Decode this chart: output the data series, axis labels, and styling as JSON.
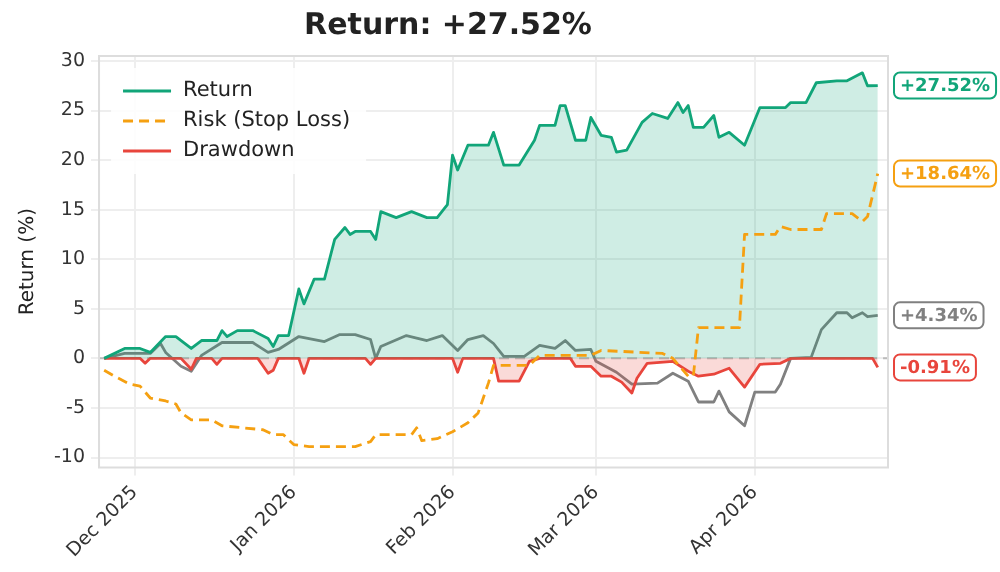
{
  "chart_data": {
    "type": "line",
    "title": "Return: +27.52%",
    "ylabel": "Return (%)",
    "xlim": [
      "2025-11-24",
      "2026-04-27"
    ],
    "xticks": [
      {
        "value": "2025-12-01",
        "label": "Dec 2025"
      },
      {
        "value": "2026-01-01",
        "label": "Jan 2026"
      },
      {
        "value": "2026-02-01",
        "label": "Feb 2026"
      },
      {
        "value": "2026-03-01",
        "label": "Mar 2026"
      },
      {
        "value": "2026-04-01",
        "label": "Apr 2026"
      }
    ],
    "ylim": [
      -11,
      30.5
    ],
    "yticks": [
      -10,
      -5,
      0,
      5,
      10,
      15,
      20,
      25,
      30
    ],
    "grid": true,
    "legend": "top left",
    "marker": "none",
    "ref_lines": [
      {
        "axis": "y",
        "value": 0,
        "color": "#bbbbbb",
        "line_style": "dashed"
      }
    ],
    "series": [
      {
        "name": "Return",
        "type": "area",
        "color": "#11a579",
        "line_style": "solid",
        "x": [
          "2025-11-25",
          "2025-11-29",
          "2025-12-02",
          "2025-12-04",
          "2025-12-07",
          "2025-12-09",
          "2025-12-12",
          "2025-12-14",
          "2025-12-17",
          "2025-12-18",
          "2025-12-19",
          "2025-12-21",
          "2025-12-24",
          "2025-12-27",
          "2025-12-28",
          "2025-12-29",
          "2025-12-31",
          "2026-01-02",
          "2026-01-03",
          "2026-01-05",
          "2026-01-07",
          "2026-01-09",
          "2026-01-11",
          "2026-01-12",
          "2026-01-13",
          "2026-01-16",
          "2026-01-17",
          "2026-01-18",
          "2026-01-21",
          "2026-01-24",
          "2026-01-27",
          "2026-01-29",
          "2026-01-31",
          "2026-02-01",
          "2026-02-02",
          "2026-02-04",
          "2026-02-08",
          "2026-02-09",
          "2026-02-11",
          "2026-02-14",
          "2026-02-17",
          "2026-02-18",
          "2026-02-21",
          "2026-02-22",
          "2026-02-23",
          "2026-02-25",
          "2026-02-27",
          "2026-02-28",
          "2026-03-02",
          "2026-03-04",
          "2026-03-05",
          "2026-03-07",
          "2026-03-10",
          "2026-03-12",
          "2026-03-15",
          "2026-03-17",
          "2026-03-18",
          "2026-03-19",
          "2026-03-20",
          "2026-03-22",
          "2026-03-24",
          "2026-03-25",
          "2026-03-27",
          "2026-03-30",
          "2026-04-02",
          "2026-04-07",
          "2026-04-08",
          "2026-04-11",
          "2026-04-13",
          "2026-04-17",
          "2026-04-19",
          "2026-04-22",
          "2026-04-23",
          "2026-04-25"
        ],
        "values": [
          0,
          1,
          1,
          0.6,
          2.2,
          2.2,
          1,
          1.8,
          1.8,
          2.8,
          2.2,
          2.8,
          2.8,
          2,
          1.2,
          2.3,
          2.3,
          7,
          5.5,
          8,
          8,
          12,
          13.2,
          12.5,
          12.8,
          12.8,
          12,
          14.8,
          14.2,
          14.8,
          14.2,
          14.2,
          15.5,
          20.5,
          19,
          21.5,
          21.5,
          22.8,
          19.5,
          19.5,
          22,
          23.5,
          23.5,
          25.5,
          25.5,
          22,
          22,
          24.3,
          22.5,
          22.3,
          20.8,
          21,
          23.8,
          24.7,
          24.2,
          25.8,
          24.8,
          25.5,
          23.3,
          23.3,
          24.5,
          22.3,
          22.8,
          21.5,
          25.3,
          25.3,
          25.8,
          25.8,
          27.8,
          28,
          28,
          28.8,
          27.5,
          27.52
        ],
        "value_labels": [
          null,
          null,
          null,
          null,
          null,
          null,
          null,
          null,
          null,
          null,
          null,
          null,
          null,
          null,
          null,
          null,
          null,
          null,
          null,
          null,
          null,
          null,
          null,
          null,
          null,
          null,
          null,
          null,
          null,
          null,
          null,
          null,
          null,
          null,
          null,
          null,
          null,
          null,
          null,
          null,
          null,
          null,
          null,
          null,
          null,
          null,
          null,
          null,
          null,
          null,
          null,
          null,
          null,
          null,
          null,
          null,
          null,
          null,
          null,
          null,
          null,
          null,
          null,
          null,
          null,
          null,
          null,
          null,
          null,
          null,
          null,
          null,
          null,
          "+27.52%"
        ]
      },
      {
        "name": "Risk (Stop Loss)",
        "type": "line",
        "color": "#f5a011",
        "line_style": "dashed",
        "x": [
          "2025-11-25",
          "2025-11-27",
          "2025-11-30",
          "2025-12-02",
          "2025-12-04",
          "2025-12-07",
          "2025-12-09",
          "2025-12-10",
          "2025-12-12",
          "2025-12-16",
          "2025-12-18",
          "2025-12-22",
          "2025-12-26",
          "2025-12-28",
          "2025-12-30",
          "2026-01-01",
          "2026-01-04",
          "2026-01-13",
          "2026-01-16",
          "2026-01-17",
          "2026-01-24",
          "2026-01-25",
          "2026-01-26",
          "2026-01-29",
          "2026-02-01",
          "2026-02-04",
          "2026-02-06",
          "2026-02-08",
          "2026-02-09",
          "2026-02-16",
          "2026-02-18",
          "2026-02-28",
          "2026-03-02",
          "2026-03-14",
          "2026-03-16",
          "2026-03-19",
          "2026-03-20",
          "2026-03-21",
          "2026-03-29",
          "2026-03-30",
          "2026-04-05",
          "2026-04-06",
          "2026-04-08",
          "2026-04-14",
          "2026-04-15",
          "2026-04-20",
          "2026-04-22",
          "2026-04-23",
          "2026-04-25"
        ],
        "values": [
          -1.2,
          -1.8,
          -2.6,
          -2.8,
          -4,
          -4.3,
          -4.6,
          -5.5,
          -6.2,
          -6.2,
          -6.8,
          -7,
          -7.2,
          -7.7,
          -7.7,
          -8.7,
          -8.9,
          -8.9,
          -8.4,
          -7.7,
          -7.7,
          -7,
          -8.3,
          -8.1,
          -7.4,
          -6.5,
          -5.5,
          -2.5,
          -0.7,
          -0.7,
          0.3,
          0.3,
          0.8,
          0.5,
          0,
          -1.8,
          -1.8,
          3.1,
          3.1,
          12.5,
          12.5,
          13.3,
          13,
          13,
          14.6,
          14.6,
          13.8,
          14.3,
          18.64
        ],
        "value_labels": [
          null,
          null,
          null,
          null,
          null,
          null,
          null,
          null,
          null,
          null,
          null,
          null,
          null,
          null,
          null,
          null,
          null,
          null,
          null,
          null,
          null,
          null,
          null,
          null,
          null,
          null,
          null,
          null,
          null,
          null,
          null,
          null,
          null,
          null,
          null,
          null,
          null,
          null,
          null,
          null,
          null,
          null,
          null,
          null,
          null,
          null,
          null,
          null,
          "+18.64%"
        ]
      },
      {
        "name": "Drawdown",
        "type": "area",
        "color": "#e8453c",
        "line_style": "solid",
        "x": [
          "2025-11-25",
          "2025-12-02",
          "2025-12-03",
          "2025-12-04",
          "2025-12-10",
          "2025-12-12",
          "2025-12-13",
          "2025-12-16",
          "2025-12-17",
          "2025-12-18",
          "2025-12-25",
          "2025-12-27",
          "2025-12-28",
          "2025-12-29",
          "2026-01-02",
          "2026-01-03",
          "2026-01-04",
          "2026-01-15",
          "2026-01-16",
          "2026-01-17",
          "2026-02-01",
          "2026-02-02",
          "2026-02-03",
          "2026-02-09",
          "2026-02-10",
          "2026-02-14",
          "2026-02-16",
          "2026-02-18",
          "2026-02-24",
          "2026-02-25",
          "2026-02-28",
          "2026-03-02",
          "2026-03-04",
          "2026-03-06",
          "2026-03-08",
          "2026-03-09",
          "2026-03-11",
          "2026-03-16",
          "2026-03-19",
          "2026-03-21",
          "2026-03-24",
          "2026-03-27",
          "2026-03-30",
          "2026-04-02",
          "2026-04-06",
          "2026-04-08",
          "2026-04-24",
          "2026-04-25"
        ],
        "values": [
          0,
          0,
          -0.5,
          0,
          0,
          -1.1,
          0,
          0,
          -0.6,
          0,
          0,
          -1.5,
          -1.2,
          0,
          0,
          -1.5,
          0,
          0,
          -0.6,
          0,
          0,
          -1.4,
          0,
          0,
          -2.3,
          -2.3,
          -0.3,
          0,
          0,
          -0.8,
          -0.8,
          -1.8,
          -1.8,
          -2.4,
          -3.5,
          -2,
          -0.5,
          -0.3,
          -1.3,
          -1.8,
          -1.6,
          -1,
          -2.9,
          -0.6,
          -0.5,
          0,
          0,
          -0.91
        ],
        "value_labels": [
          null,
          null,
          null,
          null,
          null,
          null,
          null,
          null,
          null,
          null,
          null,
          null,
          null,
          null,
          null,
          null,
          null,
          null,
          null,
          null,
          null,
          null,
          null,
          null,
          null,
          null,
          null,
          null,
          null,
          null,
          null,
          null,
          null,
          null,
          null,
          null,
          null,
          null,
          null,
          null,
          null,
          null,
          null,
          null,
          null,
          null,
          null,
          "-0.91%"
        ]
      },
      {
        "type": "line",
        "color": "#808080",
        "line_style": "solid",
        "x": [
          "2025-11-25",
          "2025-11-29",
          "2025-12-04",
          "2025-12-06",
          "2025-12-07",
          "2025-12-10",
          "2025-12-12",
          "2025-12-14",
          "2025-12-18",
          "2025-12-24",
          "2025-12-27",
          "2025-12-29",
          "2026-01-02",
          "2026-01-07",
          "2026-01-10",
          "2026-01-13",
          "2026-01-16",
          "2026-01-17",
          "2026-01-18",
          "2026-01-23",
          "2026-01-27",
          "2026-01-30",
          "2026-02-02",
          "2026-02-04",
          "2026-02-07",
          "2026-02-09",
          "2026-02-11",
          "2026-02-15",
          "2026-02-18",
          "2026-02-21",
          "2026-02-23",
          "2026-02-25",
          "2026-02-28",
          "2026-03-01",
          "2026-03-05",
          "2026-03-08",
          "2026-03-13",
          "2026-03-16",
          "2026-03-19",
          "2026-03-21",
          "2026-03-24",
          "2026-03-25",
          "2026-03-27",
          "2026-03-30",
          "2026-04-01",
          "2026-04-05",
          "2026-04-06",
          "2026-04-08",
          "2026-04-12",
          "2026-04-14",
          "2026-04-17",
          "2026-04-19",
          "2026-04-20",
          "2026-04-22",
          "2026-04-23",
          "2026-04-25"
        ],
        "values": [
          0,
          0.5,
          0.5,
          1.5,
          0.6,
          -0.8,
          -1.3,
          0.3,
          1.6,
          1.6,
          0.6,
          0.9,
          2.2,
          1.7,
          2.4,
          2.4,
          1.9,
          0,
          1.2,
          2.3,
          1.8,
          2.3,
          0.8,
          1.9,
          2.3,
          1.5,
          0.2,
          0.2,
          1.3,
          1,
          1.8,
          0.8,
          0.9,
          -0.3,
          -1.4,
          -2.6,
          -2.5,
          -1.5,
          -2.3,
          -4.4,
          -4.4,
          -3.3,
          -5.4,
          -6.8,
          -3.4,
          -3.4,
          -2.6,
          0,
          0.1,
          2.9,
          4.6,
          4.6,
          4.1,
          4.6,
          4.2,
          4.34
        ],
        "value_labels": [
          null,
          null,
          null,
          null,
          null,
          null,
          null,
          null,
          null,
          null,
          null,
          null,
          null,
          null,
          null,
          null,
          null,
          null,
          null,
          null,
          null,
          null,
          null,
          null,
          null,
          null,
          null,
          null,
          null,
          null,
          null,
          null,
          null,
          null,
          null,
          null,
          null,
          null,
          null,
          null,
          null,
          null,
          null,
          null,
          null,
          null,
          null,
          null,
          null,
          null,
          null,
          null,
          null,
          null,
          null,
          "+4.34%"
        ]
      }
    ]
  }
}
